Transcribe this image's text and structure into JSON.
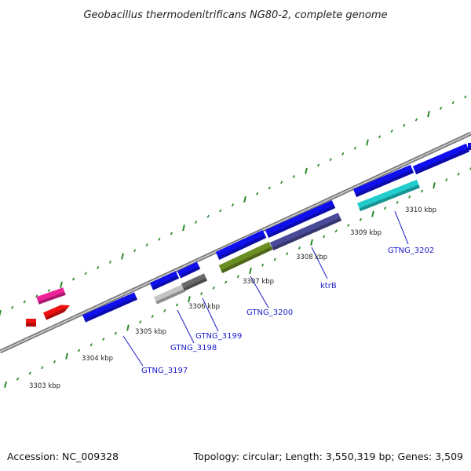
{
  "title": "Geobacillus thermodenitrificans NG80-2, complete genome",
  "footer": {
    "accession": "Accession: NC_009328",
    "topology": "Topology: circular; Length: 3,550,319 bp; Genes: 3,509"
  },
  "scale_labels": [
    "3303 kbp",
    "3304 kbp",
    "3305 kbp",
    "3306 kbp",
    "3307 kbp",
    "3308 kbp",
    "3309 kbp",
    "3310 kbp"
  ],
  "gene_labels": [
    "GTNG_3197",
    "GTNG_3198",
    "GTNG_3199",
    "GTNG_3200",
    "ktrB",
    "GTNG_3202"
  ],
  "colors": {
    "backbone": "#7a7a7a",
    "ticks": "#2a8a2a",
    "gene_label": "#1a1acc",
    "cds_blue": "#1010ee",
    "pink": "#ee2299",
    "red": "#ee1111",
    "light_gray": "#c4c4c4",
    "dark_gray": "#6a6a6a",
    "olive": "#6b8e23",
    "slate": "#4a4a9a",
    "cyan": "#22cccc"
  }
}
